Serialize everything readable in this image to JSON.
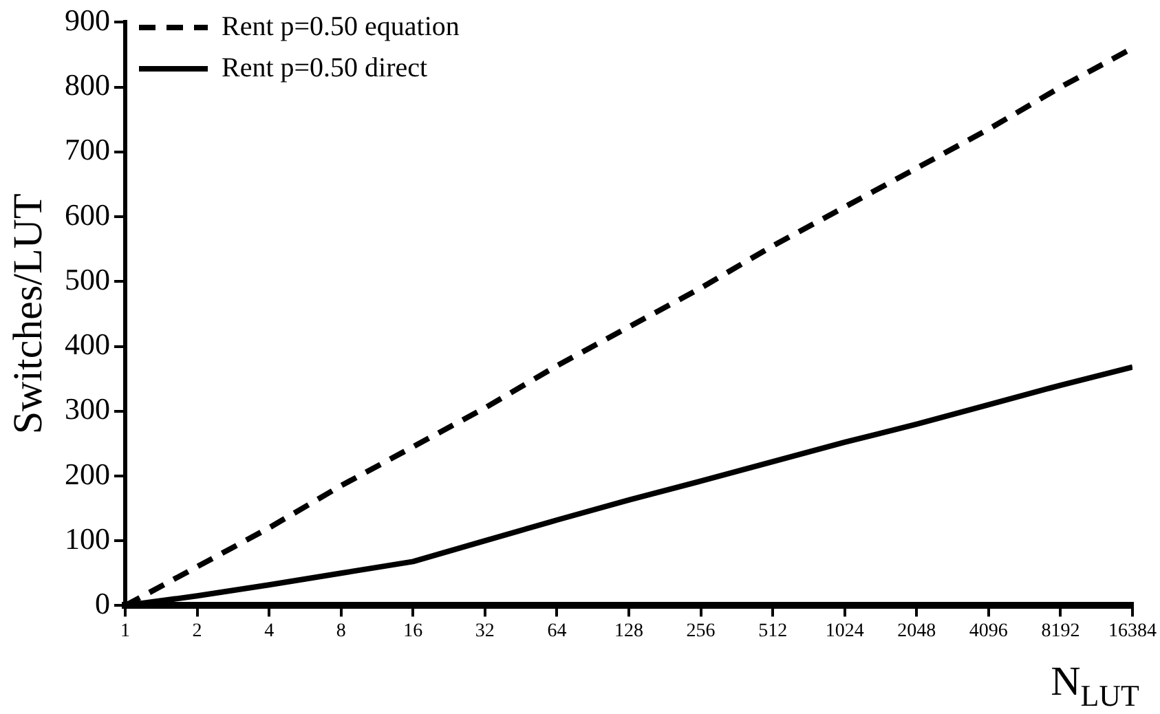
{
  "chart_data": {
    "type": "line",
    "xlabel": "N$_{LUT}$",
    "ylabel": "Switches/LUT",
    "log": "x",
    "x": [
      1,
      2,
      4,
      8,
      16,
      32,
      64,
      128,
      256,
      512,
      1024,
      2048,
      4096,
      8192,
      16384
    ],
    "series": [
      {
        "name": "Rent p=0.50 equation",
        "color": "#000000",
        "line_style": "dashed",
        "values": [
          0,
          60,
          120,
          185,
          245,
          305,
          370,
          430,
          490,
          555,
          615,
          675,
          735,
          800,
          860
        ]
      },
      {
        "name": "Rent p=0.50 direct",
        "color": "#000000",
        "line_style": "solid",
        "values": [
          0,
          15,
          32,
          50,
          68,
          100,
          132,
          163,
          192,
          222,
          252,
          280,
          310,
          340,
          368
        ]
      }
    ],
    "xlim": [
      1,
      16384
    ],
    "xticks": [
      1,
      2,
      4,
      8,
      16,
      32,
      64,
      128,
      256,
      512,
      1024,
      2048,
      4096,
      8192,
      16384
    ],
    "ylim": [
      0,
      900
    ],
    "yticks": [
      0,
      100,
      200,
      300,
      400,
      500,
      600,
      700,
      800,
      900
    ],
    "grid": false,
    "legend": "top left",
    "marker": "none"
  }
}
